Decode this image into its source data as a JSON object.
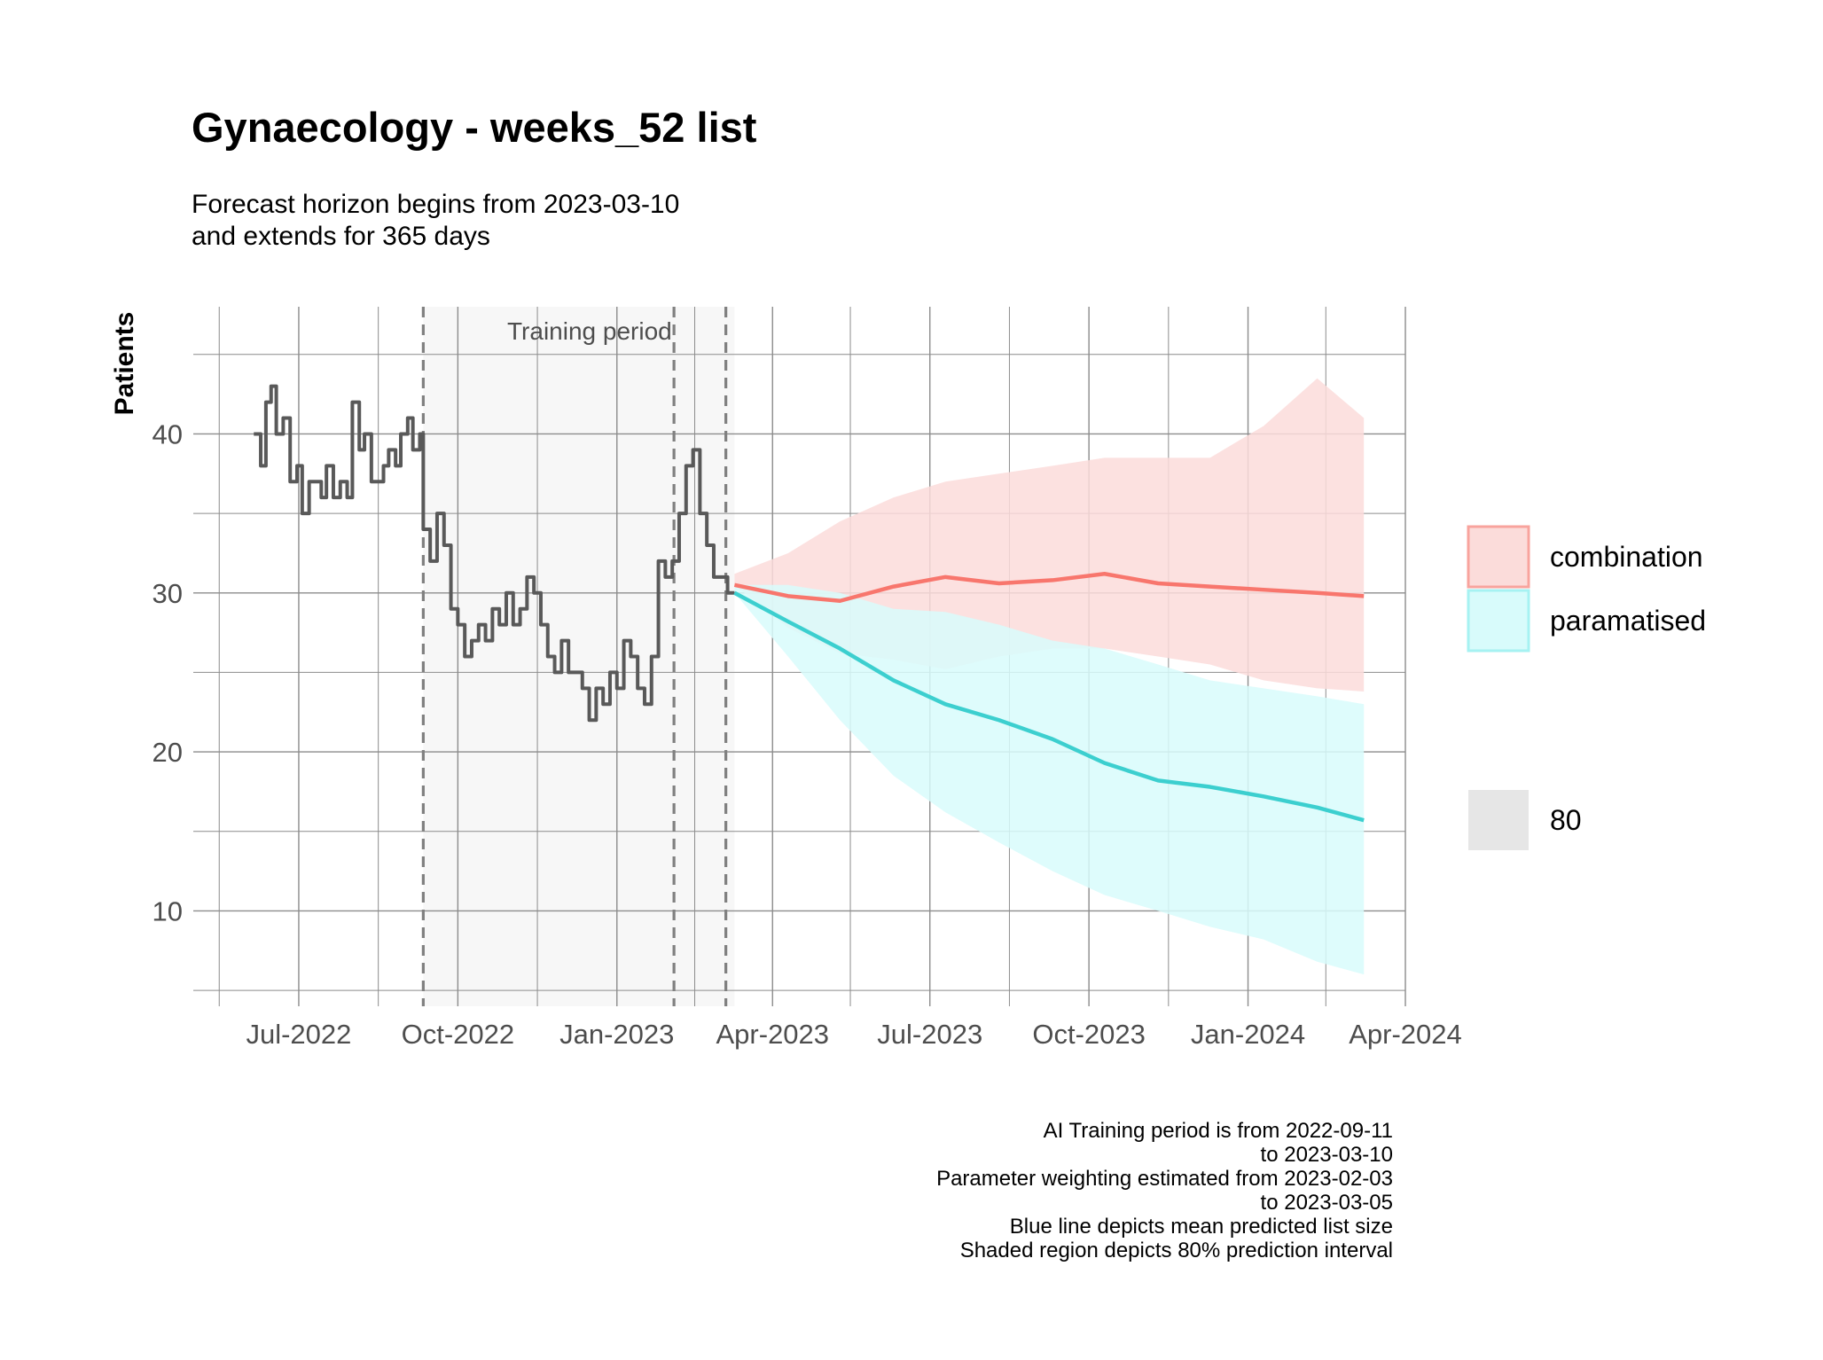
{
  "chart_data": {
    "type": "line",
    "title": "Gynaecology - weeks_52 list",
    "subtitle_lines": [
      "Forecast horizon begins from 2023-03-10",
      "and extends for 365 days"
    ],
    "xlabel": "",
    "ylabel": "Patients",
    "x_ticks": [
      "Jul-2022",
      "Oct-2022",
      "Jan-2023",
      "Apr-2023",
      "Jul-2023",
      "Oct-2023",
      "Jan-2024",
      "Apr-2024"
    ],
    "x_tick_dates": [
      "2022-07-01",
      "2022-10-01",
      "2023-01-01",
      "2023-04-01",
      "2023-07-01",
      "2023-10-01",
      "2024-01-01",
      "2024-04-01"
    ],
    "xlim": [
      "2022-05-01",
      "2024-04-01"
    ],
    "y_ticks": [
      10,
      20,
      30,
      40
    ],
    "ylim": [
      4,
      48
    ],
    "grid": true,
    "training_label": "Training period",
    "training_period": [
      "2022-09-11",
      "2023-03-10"
    ],
    "vlines": [
      "2022-09-11",
      "2023-02-03",
      "2023-03-05"
    ],
    "legend_position": "right",
    "legend": {
      "series": [
        {
          "name": "combination",
          "fill": "#fbdcda",
          "border": "#f8a39d"
        },
        {
          "name": "paramatised",
          "fill": "#d8fbfb",
          "border": "#a6f2f2"
        }
      ],
      "level_label": "80",
      "level_fill": "#e6e6e6"
    },
    "colors": {
      "observed": "#595959",
      "combination": "#f8766d",
      "paramatised": "#3ccfcf",
      "combination_band": "#fbdcda",
      "paramatised_band": "#d8fbfb",
      "training_shade": "#f7f7f7",
      "grid": "#8c8c8c"
    },
    "observed": {
      "name": "observed",
      "x": [
        "2022-06-05",
        "2022-06-09",
        "2022-06-12",
        "2022-06-15",
        "2022-06-18",
        "2022-06-22",
        "2022-06-26",
        "2022-06-30",
        "2022-07-03",
        "2022-07-07",
        "2022-07-10",
        "2022-07-14",
        "2022-07-17",
        "2022-07-21",
        "2022-07-25",
        "2022-07-29",
        "2022-08-01",
        "2022-08-05",
        "2022-08-08",
        "2022-08-12",
        "2022-08-15",
        "2022-08-19",
        "2022-08-22",
        "2022-08-26",
        "2022-08-29",
        "2022-09-02",
        "2022-09-05",
        "2022-09-09",
        "2022-09-11",
        "2022-09-15",
        "2022-09-19",
        "2022-09-23",
        "2022-09-27",
        "2022-10-01",
        "2022-10-05",
        "2022-10-09",
        "2022-10-13",
        "2022-10-17",
        "2022-10-21",
        "2022-10-25",
        "2022-10-29",
        "2022-11-02",
        "2022-11-06",
        "2022-11-10",
        "2022-11-14",
        "2022-11-18",
        "2022-11-22",
        "2022-11-26",
        "2022-11-30",
        "2022-12-04",
        "2022-12-08",
        "2022-12-12",
        "2022-12-16",
        "2022-12-20",
        "2022-12-24",
        "2022-12-28",
        "2023-01-01",
        "2023-01-05",
        "2023-01-09",
        "2023-01-13",
        "2023-01-17",
        "2023-01-21",
        "2023-01-25",
        "2023-01-29",
        "2023-02-02",
        "2023-02-06",
        "2023-02-10",
        "2023-02-14",
        "2023-02-18",
        "2023-02-22",
        "2023-02-26",
        "2023-03-02",
        "2023-03-06",
        "2023-03-10"
      ],
      "y": [
        40,
        38,
        42,
        43,
        40,
        41,
        37,
        38,
        35,
        37,
        37,
        36,
        38,
        36,
        37,
        36,
        42,
        39,
        40,
        37,
        37,
        38,
        39,
        38,
        40,
        41,
        39,
        40,
        34,
        32,
        35,
        33,
        29,
        28,
        26,
        27,
        28,
        27,
        29,
        28,
        30,
        28,
        29,
        31,
        30,
        28,
        26,
        25,
        27,
        25,
        25,
        24,
        22,
        24,
        23,
        25,
        24,
        27,
        26,
        24,
        23,
        26,
        32,
        31,
        32,
        35,
        38,
        39,
        35,
        33,
        31,
        31,
        30,
        30
      ]
    },
    "combination": {
      "name": "combination",
      "x": [
        "2023-03-10",
        "2023-04-10",
        "2023-05-10",
        "2023-06-10",
        "2023-07-10",
        "2023-08-10",
        "2023-09-10",
        "2023-10-10",
        "2023-11-10",
        "2023-12-10",
        "2024-01-10",
        "2024-02-10",
        "2024-03-08"
      ],
      "y": [
        30.5,
        29.8,
        29.5,
        30.4,
        31.0,
        30.6,
        30.8,
        31.2,
        30.6,
        30.4,
        30.2,
        30.0,
        29.8
      ],
      "lower": [
        30.5,
        27.8,
        26.2,
        25.8,
        25.2,
        26.0,
        26.5,
        26.5,
        26.0,
        25.5,
        24.5,
        24.0,
        23.8
      ],
      "upper": [
        31.2,
        32.5,
        34.5,
        36.0,
        37.0,
        37.5,
        38.0,
        38.5,
        38.5,
        38.5,
        40.5,
        43.5,
        41.0
      ]
    },
    "paramatised": {
      "name": "paramatised",
      "x": [
        "2023-03-10",
        "2023-04-10",
        "2023-05-10",
        "2023-06-10",
        "2023-07-10",
        "2023-08-10",
        "2023-09-10",
        "2023-10-10",
        "2023-11-10",
        "2023-12-10",
        "2024-01-10",
        "2024-02-10",
        "2024-03-08"
      ],
      "y": [
        30.0,
        28.2,
        26.5,
        24.5,
        23.0,
        22.0,
        20.8,
        19.3,
        18.2,
        17.8,
        17.2,
        16.5,
        15.7
      ],
      "lower": [
        30.0,
        26.0,
        22.0,
        18.5,
        16.2,
        14.3,
        12.5,
        11.0,
        10.0,
        9.0,
        8.2,
        6.8,
        6.0
      ],
      "upper": [
        30.5,
        30.5,
        30.0,
        29.0,
        28.8,
        28.0,
        27.0,
        26.5,
        25.5,
        24.5,
        24.0,
        23.5,
        23.0
      ]
    }
  },
  "caption_lines": [
    "AI Training period is from 2022-09-11",
    "to 2023-03-10",
    "Parameter weighting estimated from 2023-02-03",
    "to 2023-03-05",
    "Blue line depicts mean predicted list size",
    "Shaded region depicts 80% prediction interval"
  ]
}
